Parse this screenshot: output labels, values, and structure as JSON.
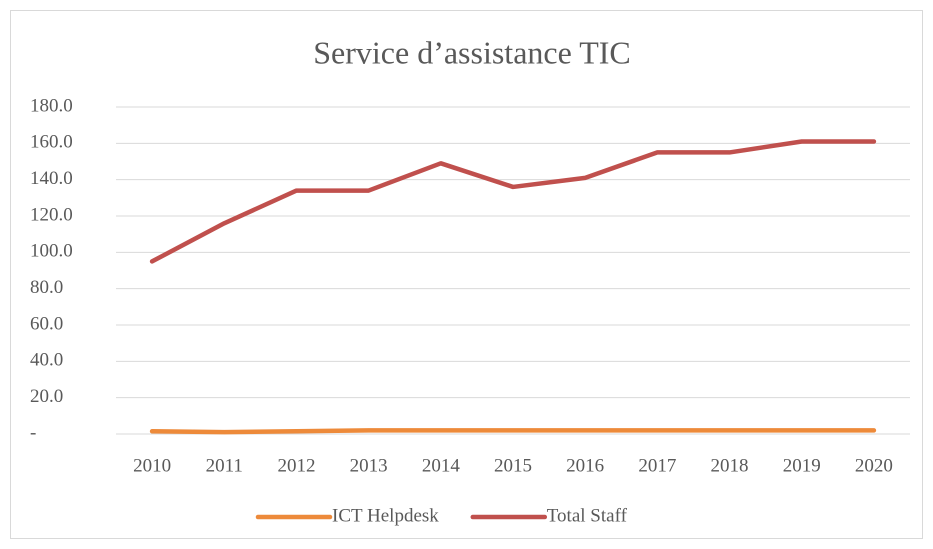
{
  "chart_data": {
    "type": "line",
    "title": "Service d’assistance TIC",
    "categories": [
      "2010",
      "2011",
      "2012",
      "2013",
      "2014",
      "2015",
      "2016",
      "2017",
      "2018",
      "2019",
      "2020"
    ],
    "series": [
      {
        "name": "ICT Helpdesk",
        "color": "#ed8a3a",
        "values": [
          1.5,
          1,
          1.5,
          2,
          2,
          2,
          2,
          2,
          2,
          2,
          2
        ]
      },
      {
        "name": "Total Staff",
        "color": "#c0504d",
        "values": [
          95,
          116,
          134,
          134,
          149,
          136,
          141,
          155,
          155,
          161,
          161
        ]
      }
    ],
    "ylim": [
      0,
      180
    ],
    "yticks": [
      {
        "value": 0,
        "label": "-"
      },
      {
        "value": 20,
        "label": "20.0"
      },
      {
        "value": 40,
        "label": "40.0"
      },
      {
        "value": 60,
        "label": "60.0"
      },
      {
        "value": 80,
        "label": "80.0"
      },
      {
        "value": 100,
        "label": "100.0"
      },
      {
        "value": 120,
        "label": "120.0"
      },
      {
        "value": 140,
        "label": "140.0"
      },
      {
        "value": 160,
        "label": "160.0"
      },
      {
        "value": 180,
        "label": "180.0"
      }
    ],
    "grid": true,
    "legend": "bottom"
  }
}
